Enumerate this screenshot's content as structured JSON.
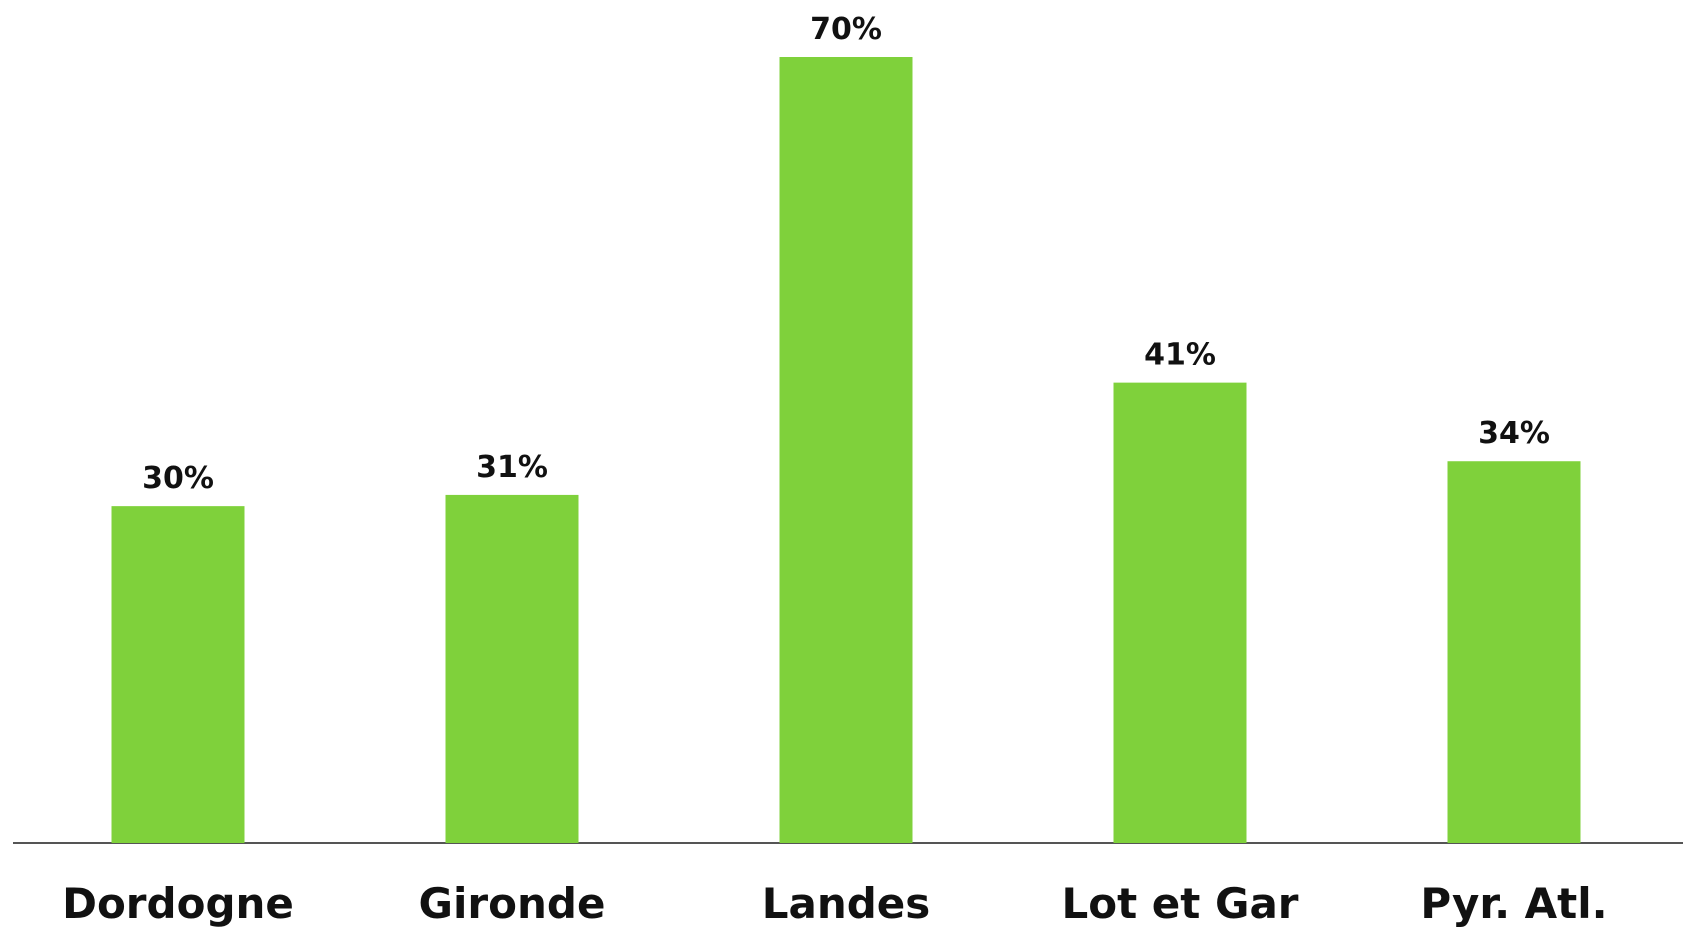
{
  "chart_data": {
    "type": "bar",
    "categories": [
      "Dordogne",
      "Gironde",
      "Landes",
      "Lot et Gar",
      "Pyr. Atl."
    ],
    "values": [
      30,
      31,
      70,
      41,
      34
    ],
    "value_labels": [
      "30%",
      "31%",
      "70%",
      "41%",
      "34%"
    ],
    "color": "#7fd13b"
  }
}
